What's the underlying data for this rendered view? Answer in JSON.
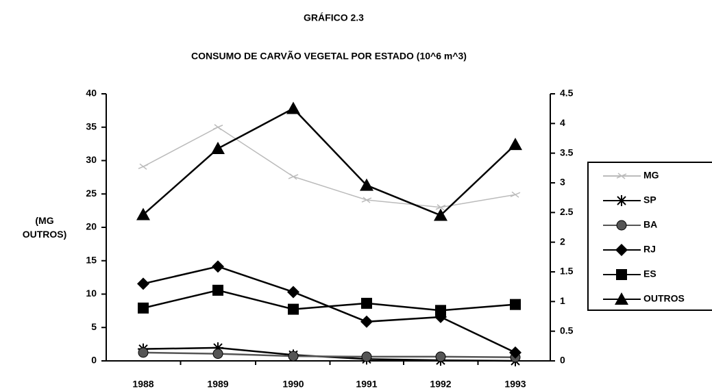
{
  "chart_data": {
    "type": "line",
    "title": "GRÁFICO 2.3",
    "subtitle": "CONSUMO DE CARVÃO VEGETAL POR ESTADO (10^6 m^3)",
    "y_label": "(MG OUTROS)",
    "categories": [
      "1988",
      "1989",
      "1990",
      "1991",
      "1992",
      "1993"
    ],
    "ylim": [
      0,
      40
    ],
    "yticks": [
      0,
      5,
      10,
      15,
      20,
      25,
      30,
      35,
      40
    ],
    "y2lim": [
      0,
      4.5
    ],
    "y2ticks": [
      0,
      0.5,
      1,
      1.5,
      2,
      2.5,
      3,
      3.5,
      4,
      4.5
    ],
    "legend": "right",
    "series": [
      {
        "name": "MG",
        "color": "#bbbbbb",
        "marker": "dash",
        "values": [
          29.1,
          35,
          27.6,
          24.1,
          23,
          24.9
        ]
      },
      {
        "name": "SP",
        "color": "#000000",
        "marker": "asterisk",
        "axis": "y2",
        "values": [
          0.2,
          0.22,
          0.1,
          0.03,
          0.01,
          0
        ]
      },
      {
        "name": "BA",
        "color": "#555555",
        "marker": "circle",
        "axis": "y2",
        "values": [
          0.14,
          0.12,
          0.08,
          0.07,
          0.07,
          0.06
        ]
      },
      {
        "name": "RJ",
        "color": "#000000",
        "marker": "diamond",
        "axis": "y2",
        "values": [
          1.3,
          1.59,
          1.16,
          0.66,
          0.74,
          0.14
        ]
      },
      {
        "name": "ES",
        "color": "#000000",
        "marker": "square",
        "axis": "y2",
        "values": [
          0.89,
          1.19,
          0.87,
          0.97,
          0.85,
          0.95
        ]
      },
      {
        "name": "OUTROS",
        "color": "#000000",
        "marker": "triangle",
        "values": [
          21.9,
          31.8,
          37.8,
          26.3,
          21.8,
          32.4
        ]
      }
    ]
  }
}
